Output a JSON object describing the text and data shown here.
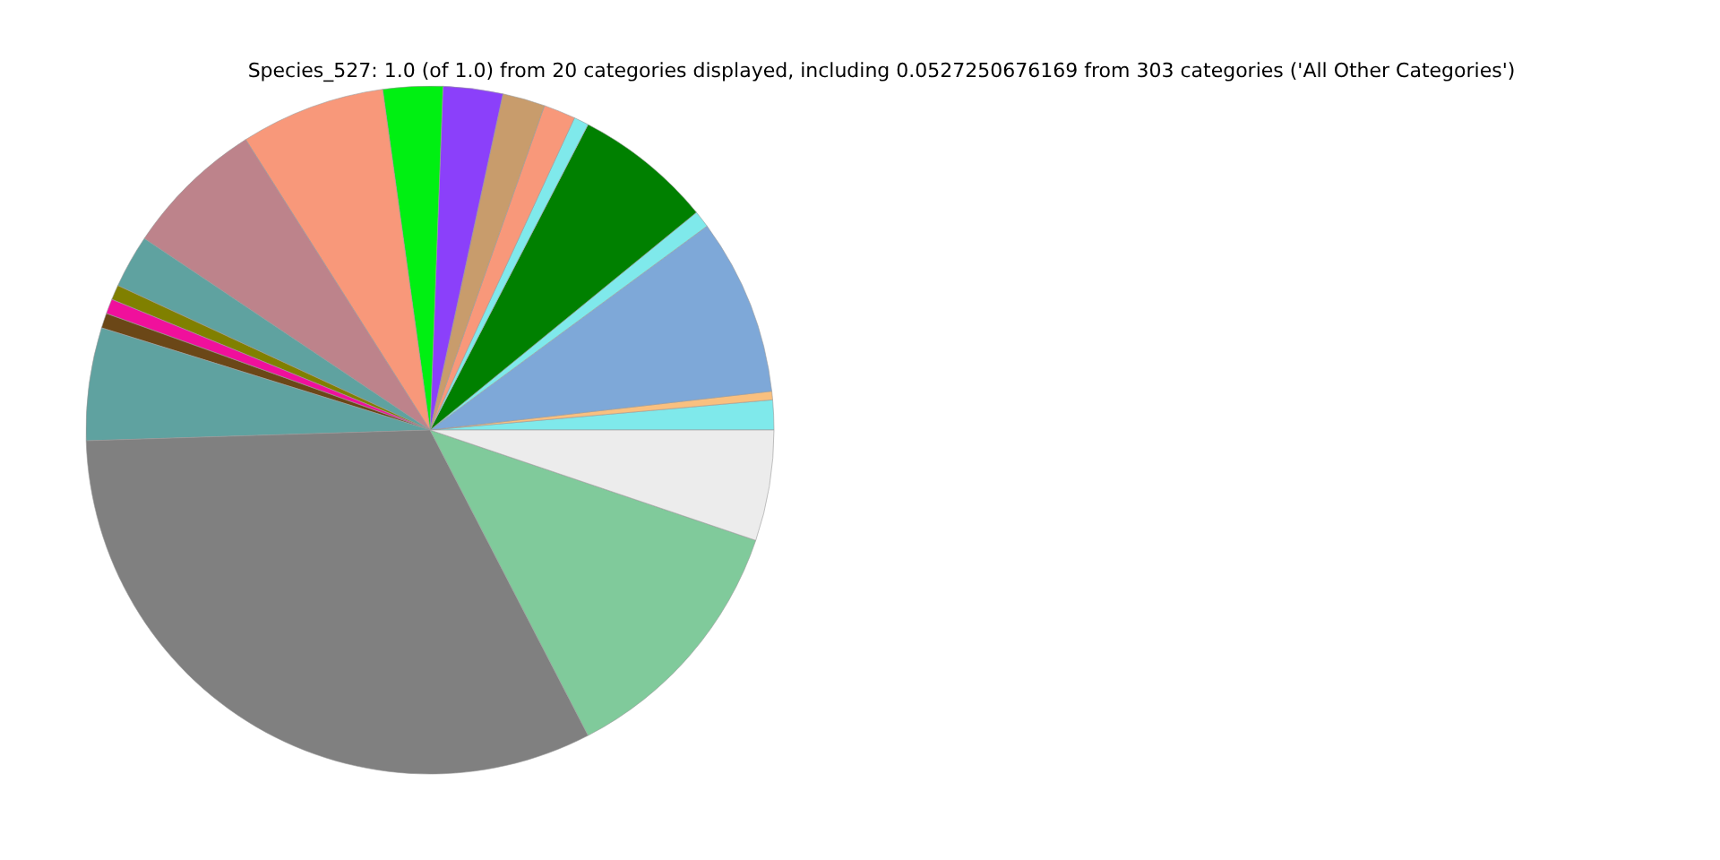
{
  "chart_data": {
    "type": "pie",
    "title": "Species_527: 1.0 (of 1.0) from 20 categories displayed, including 0.0527250676169 from 303 categories ('All Other Categories')",
    "categories": [
      null,
      null,
      null,
      null,
      null,
      null,
      null,
      null,
      null,
      null,
      null,
      null,
      null,
      null,
      null,
      null,
      null,
      null,
      null,
      null
    ],
    "values": [
      1.4,
      0.4,
      8.3,
      0.8,
      6.5,
      0.7,
      1.5,
      2.0,
      2.8,
      2.8,
      6.8,
      6.6,
      2.5,
      0.7,
      0.7,
      0.7,
      5.3,
      32.1,
      12.2,
      5.2
    ],
    "colors": [
      "#7fe9eb",
      "#f9c07f",
      "#7ea8d8",
      "#7fe9eb",
      "#008000",
      "#7fe9eb",
      "#f8987a",
      "#c89c6c",
      "#8b40fa",
      "#00f012",
      "#f8987a",
      "#bd838b",
      "#5fa2a0",
      "#808000",
      "#f0109c",
      "#6b4717",
      "#5fa2a0",
      "#808080",
      "#80ca9b",
      "#ececec"
    ]
  }
}
